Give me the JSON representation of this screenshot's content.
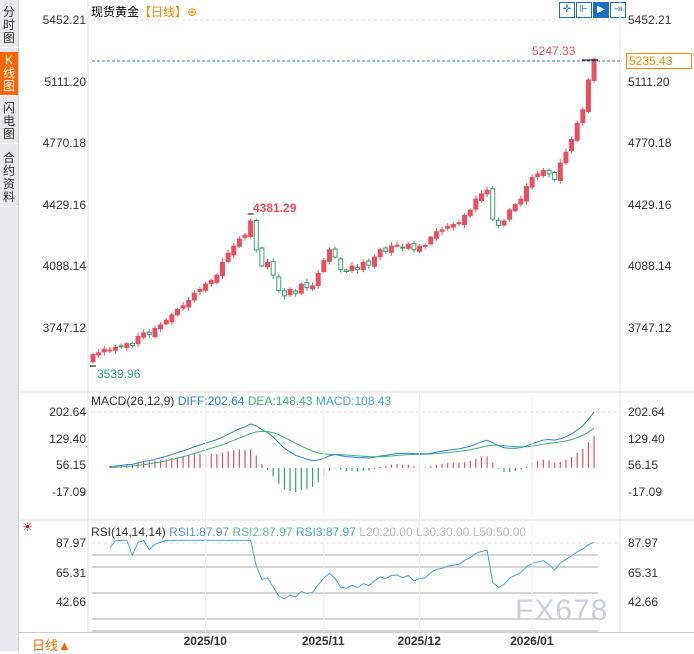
{
  "sidebar": {
    "tabs": [
      {
        "label": "分时图"
      },
      {
        "label": "K线图",
        "active": true
      },
      {
        "label": "闪电图"
      },
      {
        "label": "合约资料"
      }
    ]
  },
  "header": {
    "title": "现货黄金",
    "period": "【日线】",
    "add_icon": "circle-plus-icon"
  },
  "toolbar": {
    "icons": [
      "crosshair-icon",
      "fit-range-icon",
      "zoom-in-icon",
      "jump-to-end-icon"
    ]
  },
  "colors": {
    "up": "#e94f5e",
    "down": "#2fa36b",
    "accent": "#ff6600",
    "diff": "#2b7de9",
    "dea": "#3cb371",
    "macd": "#42a5e6"
  },
  "main": {
    "y_axis": [
      "5452.21",
      "5111.20",
      "4770.18",
      "4429.16",
      "4088.14",
      "3747.12"
    ],
    "y_values": [
      5452.21,
      5111.2,
      4770.18,
      4429.16,
      4088.14,
      3747.12
    ],
    "high_label": "4381.29",
    "low_label": "3539.96",
    "last_high_label": "5247.33",
    "current_price": "5235.43",
    "closes": [
      3600,
      3610,
      3630,
      3625,
      3640,
      3645,
      3660,
      3650,
      3700,
      3720,
      3710,
      3745,
      3764,
      3790,
      3820,
      3850,
      3870,
      3900,
      3940,
      3960,
      3990,
      4010,
      4040,
      4110,
      4160,
      4200,
      4240,
      4260,
      4340,
      4180,
      4090,
      4110,
      4040,
      3955,
      3925,
      3960,
      3940,
      3990,
      3970,
      3980,
      4050,
      4120,
      4180,
      4140,
      4070,
      4060,
      4090,
      4070,
      4110,
      4095,
      4140,
      4180,
      4170,
      4200,
      4205,
      4190,
      4210,
      4180,
      4200,
      4205,
      4250,
      4280,
      4290,
      4310,
      4320,
      4330,
      4370,
      4400,
      4460,
      4490,
      4510,
      4350,
      4315,
      4340,
      4400,
      4430,
      4460,
      4530,
      4580,
      4600,
      4620,
      4600,
      4570,
      4660,
      4720,
      4790,
      4880,
      4955,
      5120,
      5235
    ]
  },
  "macd": {
    "title": "MACD(26,12,9)",
    "diff": "DIFF:202.64",
    "dea": "DEA:148.43",
    "macd": "MACD:108.43",
    "axis": [
      "202.64",
      "129.40",
      "56.15",
      "-17.09"
    ],
    "axis_values": [
      202.64,
      129.4,
      56.15,
      -17.09
    ]
  },
  "rsi": {
    "title": "RSI(14,14,14)",
    "rsi1": "RSI1:87.97",
    "rsi2": "RSI2:87.97",
    "rsi3": "RSI3:87.97",
    "l20": "L20:20.00",
    "l30": "L30:30.00",
    "l50": "L50:50.00",
    "axis": [
      "87.97",
      "65.31",
      "42.66"
    ],
    "axis_values": [
      87.97,
      65.31,
      42.66
    ]
  },
  "x_axis": [
    {
      "label": "2025/10",
      "index": 20
    },
    {
      "label": "2025/11",
      "index": 41
    },
    {
      "label": "2025/12",
      "index": 58
    },
    {
      "label": "2026/01",
      "index": 78
    }
  ],
  "footer": {
    "period": "日线▲"
  },
  "watermark": "FX678"
}
